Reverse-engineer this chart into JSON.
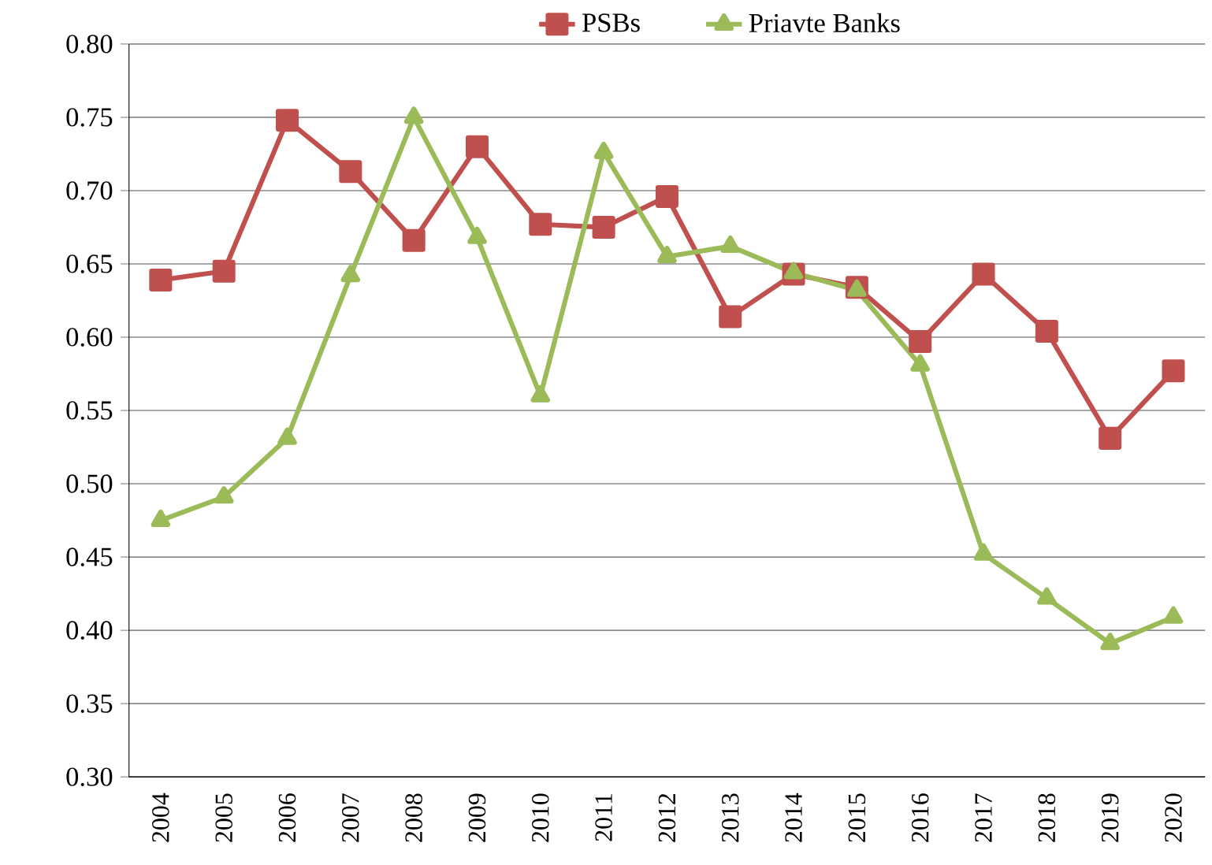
{
  "chart_data": {
    "type": "line",
    "categories": [
      "2004",
      "2005",
      "2006",
      "2007",
      "2008",
      "2009",
      "2010",
      "2011",
      "2012",
      "2013",
      "2014",
      "2015",
      "2016",
      "2017",
      "2018",
      "2019",
      "2020"
    ],
    "series": [
      {
        "name": "PSBs",
        "color": "#c0504d",
        "marker": "square",
        "values": [
          0.639,
          0.645,
          0.748,
          0.713,
          0.666,
          0.73,
          0.677,
          0.675,
          0.696,
          0.614,
          0.643,
          0.634,
          0.597,
          0.643,
          0.604,
          0.531,
          0.577
        ]
      },
      {
        "name": "Priavte Banks",
        "color": "#9bbb59",
        "marker": "triangle",
        "values": [
          0.475,
          0.491,
          0.531,
          0.642,
          0.75,
          0.668,
          0.56,
          0.726,
          0.655,
          0.662,
          0.644,
          0.632,
          0.581,
          0.452,
          0.422,
          0.391,
          0.409
        ]
      }
    ],
    "ylim": [
      0.3,
      0.8
    ],
    "yticks": [
      {
        "value": 0.3,
        "label": "0.30"
      },
      {
        "value": 0.35,
        "label": "0.35"
      },
      {
        "value": 0.4,
        "label": "0.40"
      },
      {
        "value": 0.45,
        "label": "0.45"
      },
      {
        "value": 0.5,
        "label": "0.50"
      },
      {
        "value": 0.55,
        "label": "0.55"
      },
      {
        "value": 0.6,
        "label": "0.60"
      },
      {
        "value": 0.65,
        "label": "0.65"
      },
      {
        "value": 0.7,
        "label": "0.70"
      },
      {
        "value": 0.75,
        "label": "0.75"
      },
      {
        "value": 0.8,
        "label": "0.80"
      }
    ],
    "grid": "y",
    "legend": "top"
  }
}
